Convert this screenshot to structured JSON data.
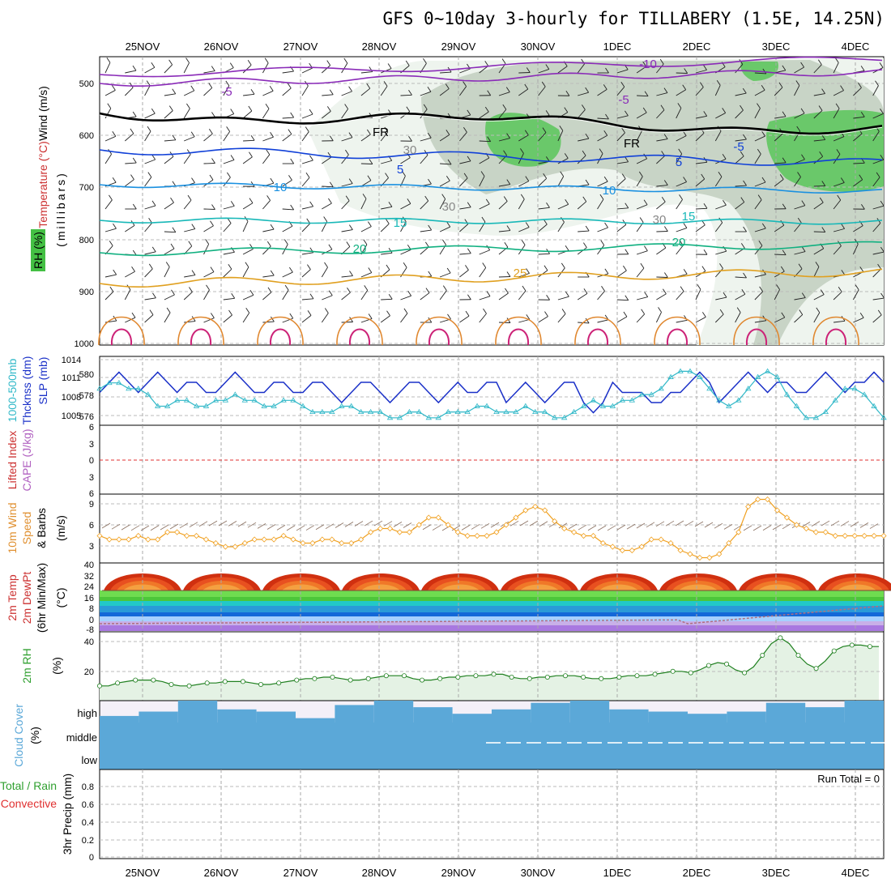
{
  "title": "GFS 0~10day 3-hourly for TILLABERY (1.5E, 14.25N)",
  "dates": [
    "25NOV",
    "26NOV",
    "27NOV",
    "28NOV",
    "29NOV",
    "30NOV",
    "1DEC",
    "2DEC",
    "3DEC",
    "4DEC"
  ],
  "colors": {
    "wind_barb": "#000000",
    "temp_warm": "#e0a030",
    "temp_hot": "#cc2277",
    "fr": "#000000",
    "minus10": "#8a2bb8",
    "minus5": "#1040d8",
    "plus10": "#1a90e0",
    "plus15": "#18b8b8",
    "plus20": "#10b080",
    "plus25": "#e0a020",
    "slp": "#30b8c8",
    "thick": "#1a30c8",
    "li_zero": "#e03030",
    "wind_speed": "#f0a020",
    "barb_sfc": "#8a7060",
    "rh_fill": "#cfe8cf",
    "rh_line": "#208020",
    "cloud": "#5ba8d8",
    "cloud_bg": "#f4f0f8"
  },
  "panels": {
    "upper": {
      "ylabel_wind": "Wind (m/s)",
      "ylabel_temp": "Temperature (°C)",
      "ylabel_rh": "RH (%)",
      "ylabel_mb": "(millibars)",
      "yticks": [
        "500",
        "600",
        "700",
        "800",
        "900",
        "1000"
      ],
      "contour_labels": [
        "-10",
        "-5",
        "-5",
        "FR",
        "FR",
        "-5",
        "5",
        "10",
        "10",
        "15",
        "15",
        "20",
        "20",
        "25",
        "30",
        "30",
        "30",
        "-5"
      ]
    },
    "thickness": {
      "ylabel_thick": "1000-500mb",
      "ylabel_thick2": "Thcknss (dm)",
      "ylabel_slp": "SLP (mb)",
      "yticks_left": [
        "580",
        "578",
        "576"
      ],
      "yticks_right": [
        "1014",
        "1011",
        "1008",
        "1005"
      ]
    },
    "cape": {
      "ylabel_li": "Lifted Index",
      "ylabel_cape": "CAPE (J/kg)",
      "yticks": [
        "6",
        "3",
        "0",
        "3",
        "6"
      ]
    },
    "wind10": {
      "ylabel1": "10m Wind",
      "ylabel2": "Speed",
      "ylabel3": "& Barbs",
      "unit": "(m/s)",
      "yticks": [
        "9",
        "6",
        "3"
      ]
    },
    "temp2m": {
      "ylabel1": "2m Temp",
      "ylabel2": "2m DewPt",
      "ylabel3": "(6hr Min/Max)",
      "unit": "(°C)",
      "yticks": [
        "40",
        "32",
        "24",
        "16",
        "8",
        "0",
        "-8"
      ]
    },
    "rh2m": {
      "ylabel": "2m RH",
      "unit": "(%)",
      "yticks": [
        "40",
        "20"
      ]
    },
    "cloud": {
      "ylabel": "Cloud Cover",
      "unit": "(%)",
      "levels": [
        "high",
        "middle",
        "low"
      ]
    },
    "precip": {
      "ylabel1": "Total / Rain",
      "ylabel2": "Convective",
      "ylabel3": "3hr Precip (mm)",
      "yticks": [
        "0.8",
        "0.6",
        "0.4",
        "0.2",
        "0"
      ],
      "run_total": "Run Total = 0"
    }
  },
  "chart_data": {
    "type": "line",
    "x_dates": [
      "25NOV",
      "26NOV",
      "27NOV",
      "28NOV",
      "29NOV",
      "30NOV",
      "1DEC",
      "2DEC",
      "3DEC",
      "4DEC"
    ],
    "slp_mb": [
      1010,
      1011,
      1011,
      1010,
      1010,
      1009,
      1007,
      1007,
      1008,
      1008,
      1007,
      1007,
      1008,
      1008,
      1009,
      1008,
      1008,
      1007,
      1007,
      1008,
      1008,
      1007,
      1006,
      1006,
      1006,
      1007,
      1007,
      1006,
      1006,
      1006,
      1005,
      1005,
      1006,
      1006,
      1005,
      1005,
      1006,
      1006,
      1006,
      1007,
      1007,
      1006,
      1006,
      1006,
      1007,
      1006,
      1006,
      1005,
      1005,
      1006,
      1007,
      1008,
      1007,
      1007,
      1008,
      1008,
      1009,
      1009,
      1010,
      1012,
      1013,
      1013,
      1012,
      1010,
      1008,
      1007,
      1008,
      1010,
      1012,
      1013,
      1012,
      1009,
      1007,
      1005,
      1005,
      1006,
      1008,
      1010,
      1010,
      1009,
      1007,
      1005
    ],
    "thick_dm": [
      578,
      579,
      580,
      579,
      578,
      579,
      580,
      579,
      578,
      579,
      579,
      578,
      578,
      579,
      580,
      579,
      578,
      578,
      579,
      579,
      578,
      578,
      579,
      579,
      578,
      577,
      578,
      579,
      579,
      578,
      577,
      578,
      579,
      579,
      578,
      577,
      578,
      579,
      578,
      578,
      579,
      579,
      577,
      578,
      579,
      578,
      577,
      578,
      579,
      579,
      577,
      576,
      577,
      579,
      578,
      578,
      578,
      577,
      577,
      578,
      578,
      579,
      580,
      579,
      577,
      578,
      579,
      580,
      579,
      578,
      579,
      579,
      578,
      578,
      579,
      580,
      579,
      578,
      579,
      579,
      580,
      579
    ],
    "wind10_ms": [
      4.5,
      4,
      4,
      4,
      4.5,
      4,
      4,
      5,
      5,
      4.5,
      4.5,
      4,
      3.5,
      3,
      3,
      3.5,
      4,
      4,
      4,
      4.5,
      4,
      3.5,
      3.5,
      4,
      4,
      3.5,
      3.5,
      4,
      5,
      5.5,
      5.5,
      5,
      5,
      6,
      7,
      7,
      6,
      5,
      4.5,
      4.5,
      4.5,
      5,
      6,
      7,
      8,
      8.5,
      8,
      6.5,
      5.5,
      5,
      4.5,
      4.5,
      3.5,
      3,
      2.5,
      2.5,
      3,
      4,
      4,
      3.5,
      2.5,
      2,
      1.5,
      1.5,
      2,
      3.5,
      5,
      8.5,
      9.5,
      9.5,
      8,
      7,
      6,
      5.5,
      5,
      5,
      4.5,
      4.5,
      4.5,
      4.5,
      4.5,
      4.5
    ],
    "rh2m_pct": [
      9,
      9,
      11,
      12,
      13,
      13,
      13,
      12,
      10,
      9,
      9,
      10,
      11,
      11,
      12,
      12,
      12,
      11,
      10,
      10,
      11,
      12,
      13,
      14,
      14,
      15,
      15,
      14,
      13,
      13,
      14,
      15,
      16,
      16,
      16,
      14,
      13,
      13,
      14,
      15,
      15,
      16,
      16,
      16,
      17,
      17,
      15,
      14,
      14,
      15,
      15,
      16,
      16,
      16,
      15,
      14,
      14,
      14,
      15,
      16,
      16,
      16,
      17,
      18,
      19,
      19,
      18,
      20,
      23,
      25,
      24,
      20,
      18,
      22,
      30,
      38,
      42,
      38,
      30,
      24,
      21,
      26,
      33,
      36,
      37,
      37,
      36,
      36
    ],
    "temp_max_c": [
      32,
      32,
      33,
      33,
      33,
      34,
      34,
      34,
      34,
      35,
      34,
      34,
      34,
      31
    ],
    "cloud_high_cover": [
      0.3,
      0.5,
      1,
      0.6,
      0.5,
      0.2,
      0.8,
      1,
      0.7,
      0.4,
      0.6,
      0.9,
      1,
      0.6,
      0.5,
      0.4,
      0.5,
      0.9,
      0.7,
      1
    ],
    "precip_mm": 0
  }
}
